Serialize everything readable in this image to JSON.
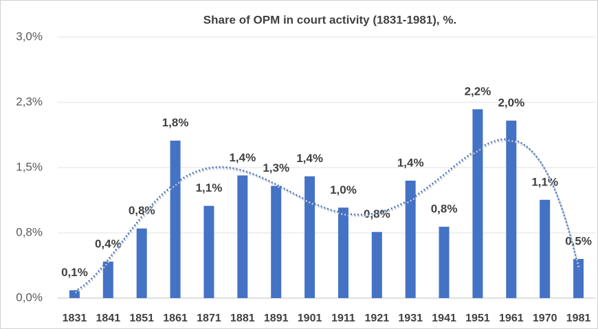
{
  "chart_data": {
    "type": "bar",
    "title": "Share of OPM in court activity (1831-1981), %.",
    "categories": [
      "1831",
      "1841",
      "1851",
      "1861",
      "1871",
      "1881",
      "1891",
      "1901",
      "1911",
      "1921",
      "1931",
      "1941",
      "1951",
      "1961",
      "1970",
      "1981"
    ],
    "values": [
      0.09,
      0.42,
      0.8,
      1.81,
      1.06,
      1.41,
      1.29,
      1.4,
      1.04,
      0.76,
      1.35,
      0.82,
      2.17,
      2.04,
      1.13,
      0.45
    ],
    "value_labels": [
      "0,1%",
      "0,4%",
      "0,8%",
      "1,8%",
      "1,1%",
      "1,4%",
      "1,3%",
      "1,4%",
      "1,0%",
      "0,8%",
      "1,4%",
      "0,8%",
      "2,2%",
      "2,0%",
      "1,1%",
      "0,5%"
    ],
    "color": "#4472c4",
    "ylim": [
      0,
      3.0
    ],
    "yticks": [
      {
        "value": 0,
        "label": "0,0%"
      },
      {
        "value": 0.75,
        "label": "0,8%"
      },
      {
        "value": 1.5,
        "label": "1,5%"
      },
      {
        "value": 2.25,
        "label": "2,3%"
      },
      {
        "value": 3.0,
        "label": "3,0%"
      }
    ],
    "grid": true,
    "trendline": {
      "type": "polynomial",
      "order": 6,
      "color": "#4472c4"
    }
  }
}
